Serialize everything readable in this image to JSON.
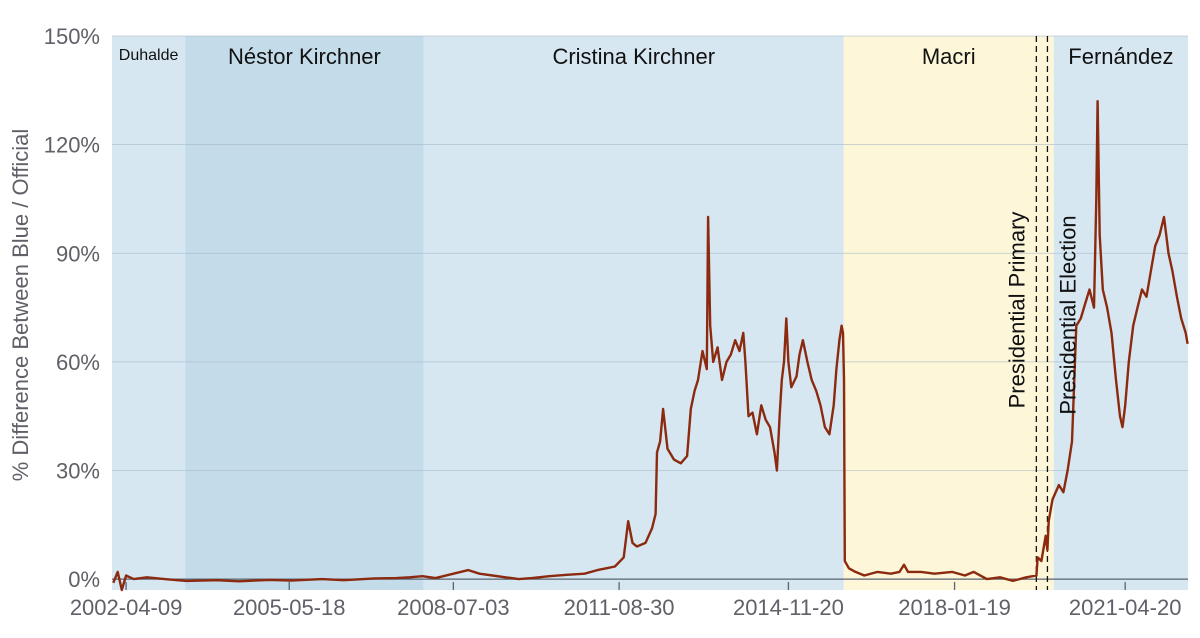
{
  "chart_data": {
    "type": "line",
    "title": "",
    "xlabel": "",
    "ylabel": "% Difference Between Blue / Official",
    "xlim": [
      "2002-01-01",
      "2022-07-01"
    ],
    "ylim": [
      -3,
      150
    ],
    "y_ticks": [
      {
        "value": 0,
        "label": "0%"
      },
      {
        "value": 30,
        "label": "30%"
      },
      {
        "value": 60,
        "label": "60%"
      },
      {
        "value": 90,
        "label": "90%"
      },
      {
        "value": 120,
        "label": "120%"
      },
      {
        "value": 150,
        "label": "150%"
      }
    ],
    "x_ticks": [
      "2002-04-09",
      "2005-05-18",
      "2008-07-03",
      "2011-08-30",
      "2014-11-20",
      "2018-01-19",
      "2021-04-20"
    ],
    "grid": true,
    "eras": [
      {
        "name": "Duhalde",
        "start": "2002-01-01",
        "end": "2003-05-25",
        "color": "#d7e7f2"
      },
      {
        "name": "Néstor Kirchner",
        "start": "2003-05-25",
        "end": "2007-12-10",
        "color": "#c4dcea"
      },
      {
        "name": "Cristina Kirchner",
        "start": "2007-12-10",
        "end": "2015-12-10",
        "color": "#d7e7f2"
      },
      {
        "name": "Macri",
        "start": "2015-12-10",
        "end": "2019-12-10",
        "color": "#fdf6d8"
      },
      {
        "name": "Fernández",
        "start": "2019-12-10",
        "end": "2022-07-01",
        "color": "#d7e7f2"
      }
    ],
    "events": [
      {
        "name": "Presidential Primary",
        "date": "2019-08-11"
      },
      {
        "name": "Presidential Election",
        "date": "2019-10-27"
      }
    ],
    "series": [
      {
        "color": "#8b2a0e",
        "points": [
          [
            "2002-01-10",
            -1
          ],
          [
            "2002-02-10",
            2
          ],
          [
            "2002-03-10",
            -3
          ],
          [
            "2002-04-09",
            1
          ],
          [
            "2002-06-01",
            0
          ],
          [
            "2002-09-01",
            0.5
          ],
          [
            "2003-01-01",
            0
          ],
          [
            "2003-06-01",
            -0.5
          ],
          [
            "2004-01-01",
            -0.3
          ],
          [
            "2004-06-01",
            -0.6
          ],
          [
            "2005-01-01",
            -0.2
          ],
          [
            "2005-06-01",
            -0.4
          ],
          [
            "2006-01-01",
            0
          ],
          [
            "2006-06-01",
            -0.3
          ],
          [
            "2007-01-01",
            0.2
          ],
          [
            "2007-06-01",
            0.3
          ],
          [
            "2007-09-01",
            0.5
          ],
          [
            "2007-12-01",
            0.8
          ],
          [
            "2008-03-01",
            0.3
          ],
          [
            "2008-07-03",
            1.5
          ],
          [
            "2008-10-15",
            2.5
          ],
          [
            "2009-01-01",
            1.5
          ],
          [
            "2009-04-01",
            1
          ],
          [
            "2009-07-01",
            0.5
          ],
          [
            "2009-10-01",
            0
          ],
          [
            "2010-01-01",
            0.3
          ],
          [
            "2010-05-01",
            0.8
          ],
          [
            "2010-09-01",
            1.2
          ],
          [
            "2011-01-01",
            1.5
          ],
          [
            "2011-04-01",
            2.5
          ],
          [
            "2011-06-01",
            3
          ],
          [
            "2011-08-01",
            3.5
          ],
          [
            "2011-10-01",
            6
          ],
          [
            "2011-11-01",
            16
          ],
          [
            "2011-12-01",
            10
          ],
          [
            "2012-01-01",
            9
          ],
          [
            "2012-03-01",
            10
          ],
          [
            "2012-04-15",
            14
          ],
          [
            "2012-05-10",
            18
          ],
          [
            "2012-05-20",
            35
          ],
          [
            "2012-06-10",
            38
          ],
          [
            "2012-07-01",
            47
          ],
          [
            "2012-08-01",
            36
          ],
          [
            "2012-09-15",
            33
          ],
          [
            "2012-11-01",
            32
          ],
          [
            "2012-12-15",
            34
          ],
          [
            "2013-01-10",
            47
          ],
          [
            "2013-02-05",
            52
          ],
          [
            "2013-03-01",
            55
          ],
          [
            "2013-04-01",
            63
          ],
          [
            "2013-05-01",
            58
          ],
          [
            "2013-05-10",
            100
          ],
          [
            "2013-05-25",
            70
          ],
          [
            "2013-06-15",
            60
          ],
          [
            "2013-07-15",
            64
          ],
          [
            "2013-08-15",
            55
          ],
          [
            "2013-09-15",
            60
          ],
          [
            "2013-10-15",
            62
          ],
          [
            "2013-11-15",
            66
          ],
          [
            "2013-12-15",
            63
          ],
          [
            "2014-01-10",
            68
          ],
          [
            "2014-01-25",
            60
          ],
          [
            "2014-02-15",
            45
          ],
          [
            "2014-03-15",
            46
          ],
          [
            "2014-04-15",
            40
          ],
          [
            "2014-05-15",
            48
          ],
          [
            "2014-06-15",
            44
          ],
          [
            "2014-07-15",
            42
          ],
          [
            "2014-08-15",
            35
          ],
          [
            "2014-09-01",
            30
          ],
          [
            "2014-09-20",
            45
          ],
          [
            "2014-10-05",
            55
          ],
          [
            "2014-10-20",
            60
          ],
          [
            "2014-11-05",
            72
          ],
          [
            "2014-11-20",
            60
          ],
          [
            "2014-12-10",
            53
          ],
          [
            "2015-01-15",
            56
          ],
          [
            "2015-02-05",
            62
          ],
          [
            "2015-03-01",
            66
          ],
          [
            "2015-04-01",
            60
          ],
          [
            "2015-05-01",
            55
          ],
          [
            "2015-06-01",
            52
          ],
          [
            "2015-07-01",
            48
          ],
          [
            "2015-08-01",
            42
          ],
          [
            "2015-09-01",
            40
          ],
          [
            "2015-10-01",
            48
          ],
          [
            "2015-10-20",
            58
          ],
          [
            "2015-11-10",
            66
          ],
          [
            "2015-11-25",
            70
          ],
          [
            "2015-12-05",
            68
          ],
          [
            "2015-12-12",
            55
          ],
          [
            "2015-12-17",
            5
          ],
          [
            "2016-01-15",
            3
          ],
          [
            "2016-03-01",
            2
          ],
          [
            "2016-05-01",
            1
          ],
          [
            "2016-08-01",
            2
          ],
          [
            "2016-11-01",
            1.5
          ],
          [
            "2017-01-01",
            2
          ],
          [
            "2017-02-01",
            4
          ],
          [
            "2017-03-01",
            2
          ],
          [
            "2017-06-01",
            2
          ],
          [
            "2017-09-01",
            1.5
          ],
          [
            "2018-01-01",
            2
          ],
          [
            "2018-04-01",
            1
          ],
          [
            "2018-06-01",
            2
          ],
          [
            "2018-09-01",
            0
          ],
          [
            "2018-12-01",
            0.5
          ],
          [
            "2019-03-01",
            -0.5
          ],
          [
            "2019-06-01",
            0.5
          ],
          [
            "2019-08-11",
            1
          ],
          [
            "2019-08-20",
            6
          ],
          [
            "2019-09-15",
            5
          ],
          [
            "2019-10-15",
            12
          ],
          [
            "2019-10-27",
            8
          ],
          [
            "2019-11-05",
            16
          ],
          [
            "2019-12-01",
            22
          ],
          [
            "2020-01-15",
            26
          ],
          [
            "2020-02-15",
            24
          ],
          [
            "2020-03-15",
            30
          ],
          [
            "2020-04-15",
            38
          ],
          [
            "2020-05-15",
            70
          ],
          [
            "2020-06-15",
            72
          ],
          [
            "2020-07-15",
            76
          ],
          [
            "2020-08-15",
            80
          ],
          [
            "2020-09-15",
            75
          ],
          [
            "2020-10-01",
            105
          ],
          [
            "2020-10-10",
            132
          ],
          [
            "2020-10-25",
            95
          ],
          [
            "2020-11-15",
            80
          ],
          [
            "2020-12-15",
            75
          ],
          [
            "2021-01-15",
            68
          ],
          [
            "2021-02-15",
            55
          ],
          [
            "2021-03-15",
            45
          ],
          [
            "2021-04-01",
            42
          ],
          [
            "2021-04-20",
            48
          ],
          [
            "2021-05-15",
            60
          ],
          [
            "2021-06-15",
            70
          ],
          [
            "2021-07-15",
            75
          ],
          [
            "2021-08-15",
            80
          ],
          [
            "2021-09-15",
            78
          ],
          [
            "2021-10-15",
            85
          ],
          [
            "2021-11-15",
            92
          ],
          [
            "2021-12-15",
            95
          ],
          [
            "2022-01-15",
            100
          ],
          [
            "2022-02-15",
            90
          ],
          [
            "2022-03-15",
            85
          ],
          [
            "2022-04-15",
            78
          ],
          [
            "2022-05-15",
            72
          ],
          [
            "2022-06-15",
            68
          ],
          [
            "2022-06-28",
            65
          ]
        ]
      }
    ]
  }
}
